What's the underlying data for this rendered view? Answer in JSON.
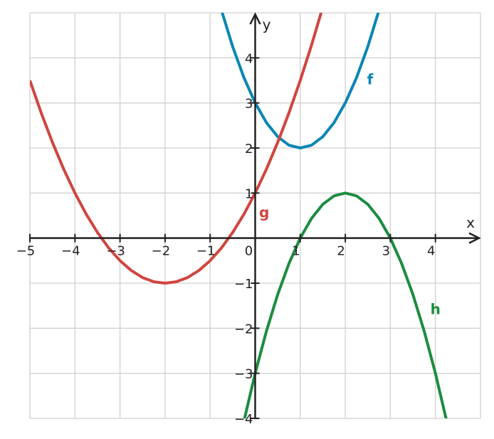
{
  "chart_data": {
    "type": "line",
    "x": [
      -5,
      -4.75,
      -4.5,
      -4.25,
      -4,
      -3.75,
      -3.5,
      -3.25,
      -3,
      -2.75,
      -2.5,
      -2.25,
      -2,
      -1.75,
      -1.5,
      -1.25,
      -1,
      -0.75,
      -0.5,
      -0.25,
      0,
      0.25,
      0.5,
      0.75,
      1,
      1.25,
      1.5,
      1.75,
      2,
      2.25,
      2.5,
      2.75,
      3,
      3.25,
      3.5,
      3.75,
      4,
      4.25,
      4.5,
      4.75,
      5
    ],
    "series": [
      {
        "name": "f",
        "color": "#0b86b4",
        "values": [
          null,
          null,
          null,
          null,
          null,
          null,
          null,
          null,
          null,
          null,
          null,
          null,
          null,
          null,
          null,
          null,
          null,
          5.0625,
          4.25,
          3.5625,
          3,
          2.5625,
          2.25,
          2.0625,
          2,
          2.0625,
          2.25,
          2.5625,
          3,
          3.5625,
          4.25,
          5.0625,
          null,
          null,
          null,
          null,
          null,
          null,
          null,
          null,
          null
        ],
        "label_at": [
          2.55,
          3.5
        ]
      },
      {
        "name": "g",
        "color": "#d0453f",
        "values": [
          3.5,
          2.78125,
          2.125,
          1.53125,
          1,
          0.53125,
          0.125,
          -0.21875,
          -0.5,
          -0.71875,
          -0.875,
          -0.96875,
          -1,
          -0.96875,
          -0.875,
          -0.71875,
          -0.5,
          -0.21875,
          0.125,
          0.53125,
          1,
          1.53125,
          2.125,
          2.78125,
          3.5,
          4.28125,
          5.125,
          null,
          null,
          null,
          null,
          null,
          null,
          null,
          null,
          null,
          null,
          null,
          null,
          null,
          null
        ],
        "label_at": [
          0.2,
          0.55
        ]
      },
      {
        "name": "h",
        "color": "#1c8c40",
        "values": [
          null,
          null,
          null,
          null,
          null,
          null,
          null,
          null,
          null,
          null,
          null,
          null,
          null,
          null,
          null,
          null,
          null,
          null,
          null,
          -4.0625,
          -3,
          -2.0625,
          -1.25,
          -0.5625,
          0,
          0.4375,
          0.75,
          0.9375,
          1,
          0.9375,
          0.75,
          0.4375,
          0,
          -0.5625,
          -1.25,
          -2.0625,
          -3,
          -4.0625,
          null,
          null,
          null
        ],
        "label_at": [
          4,
          -1.6
        ]
      }
    ],
    "x_label": "x",
    "y_label": "y",
    "xlim": [
      -5,
      5
    ],
    "ylim": [
      -4,
      5
    ],
    "xticks": [
      {
        "value": -5,
        "label": "−5"
      },
      {
        "value": -4,
        "label": "−4"
      },
      {
        "value": -3,
        "label": "−3"
      },
      {
        "value": -2,
        "label": "−2"
      },
      {
        "value": -1,
        "label": "−1"
      },
      0,
      1,
      2,
      3,
      4
    ],
    "yticks": [
      {
        "value": -4,
        "label": "−4"
      },
      {
        "value": -3,
        "label": "−3"
      },
      {
        "value": -2,
        "label": "−2"
      },
      {
        "value": -1,
        "label": "−1"
      },
      1,
      2,
      3,
      4
    ],
    "grid": true
  }
}
